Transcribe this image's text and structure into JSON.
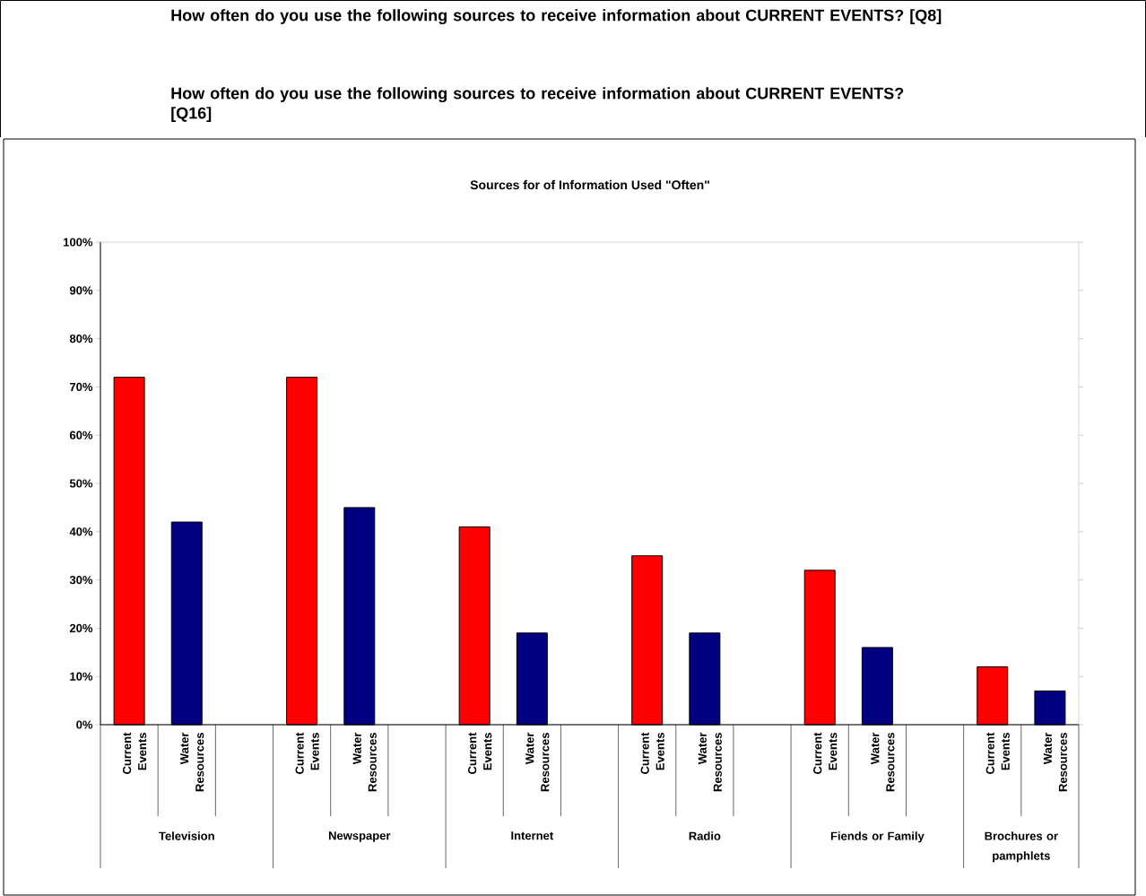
{
  "chart_data": {
    "type": "bar",
    "title": "Sources for of Information Used \"Often\"",
    "annotations": [
      "How often do you use the following sources to receive information about CURRENT EVENTS?  [Q8]",
      "How often do you use the following sources to receive information about CURRENT EVENTS?  [Q16]",
      "Television",
      "Newspaper",
      "Internet",
      "Radio",
      "Fiends or Family",
      "Brochures or pamphlets"
    ],
    "categories": [
      "Current Events",
      "Water Resources",
      null,
      "Current Events",
      "Water Resources",
      null,
      "Current Events",
      "Water Resources",
      null,
      "Current Events",
      "Water Resources",
      null,
      "Current Events",
      "Water Resources",
      null,
      "Current Events",
      "Water Resources"
    ],
    "values": [
      72,
      42,
      null,
      72,
      45,
      null,
      41,
      19,
      null,
      35,
      19,
      null,
      32,
      16,
      null,
      12,
      7
    ],
    "colors": [
      "#ff0000",
      "#000080",
      null,
      "#ff0000",
      "#000080",
      null,
      "#ff0000",
      "#000080",
      null,
      "#ff0000",
      "#000080",
      null,
      "#ff0000",
      "#000080",
      null,
      "#ff0000",
      "#000080"
    ],
    "ylim": [
      0,
      100
    ],
    "yticks": [
      {
        "value": 0,
        "label": "0%"
      },
      {
        "value": 10,
        "label": "10%"
      },
      {
        "value": 20,
        "label": "20%"
      },
      {
        "value": 30,
        "label": "30%"
      },
      {
        "value": 40,
        "label": "40%"
      },
      {
        "value": 50,
        "label": "50%"
      },
      {
        "value": 60,
        "label": "60%"
      },
      {
        "value": 70,
        "label": "70%"
      },
      {
        "value": 80,
        "label": "80%"
      },
      {
        "value": 90,
        "label": "90%"
      },
      {
        "value": 100,
        "label": "100%"
      }
    ]
  }
}
